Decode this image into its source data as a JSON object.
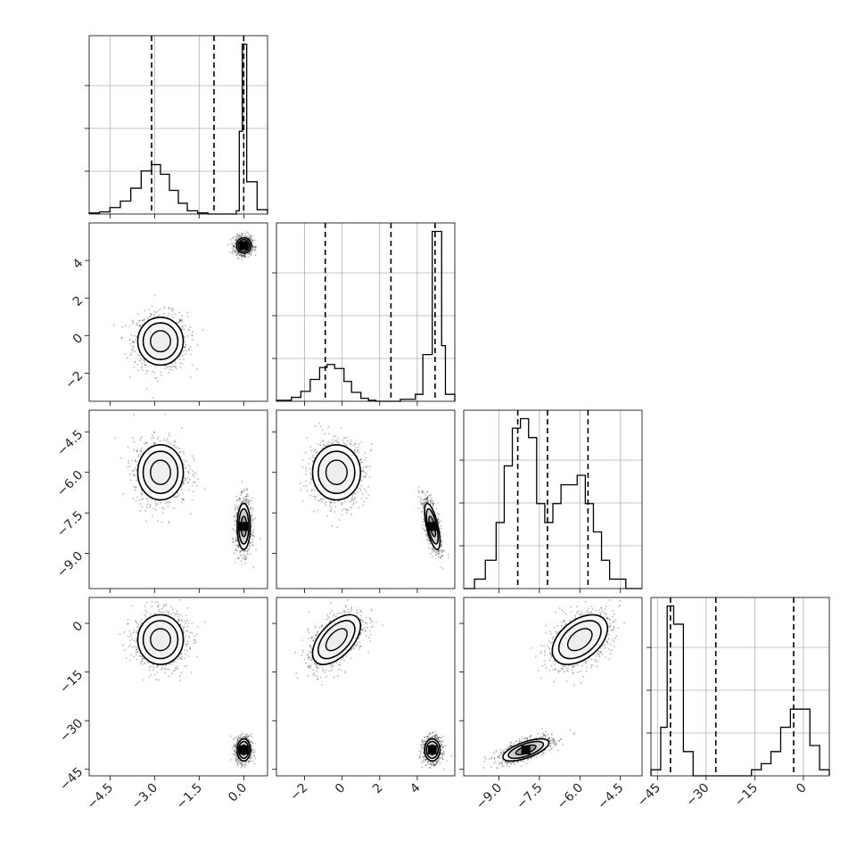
{
  "chart_data": {
    "type": "corner",
    "n_params": 4,
    "grid": true,
    "params": [
      {
        "range": [
          -5.2,
          0.8
        ],
        "ticks": [
          -4.5,
          -3.0,
          -1.5,
          0.0
        ],
        "tick_labels": [
          "−4.5",
          "−3.0",
          "−1.5",
          "0.0"
        ],
        "modes": [
          {
            "mean": -2.8,
            "sd": 0.5,
            "w": 0.5
          },
          {
            "mean": 0.0,
            "sd": 0.15,
            "w": 0.5
          }
        ],
        "quantiles": [
          -3.1,
          -1.0,
          0.0
        ],
        "hist": {
          "bins": [
            -5.2,
            -4.85,
            -4.5,
            -4.15,
            -3.8,
            -3.45,
            -3.1,
            -2.8,
            -2.5,
            -2.2,
            -1.9,
            -1.55,
            -1.2,
            -0.9,
            -0.45,
            -0.25,
            -0.15,
            -0.05,
            0.1,
            0.45,
            0.8
          ],
          "counts": [
            1,
            2,
            6,
            12,
            24,
            40,
            46,
            37,
            22,
            10,
            3,
            1,
            0,
            0,
            0,
            3,
            77,
            158,
            30,
            4
          ]
        }
      },
      {
        "range": [
          -3.5,
          6.0
        ],
        "ticks": [
          -2,
          0,
          2,
          4
        ],
        "tick_labels": [
          "−2",
          "0",
          "2",
          "4"
        ],
        "modes": [
          {
            "mean": -0.3,
            "sd": 0.8,
            "w": 0.5
          },
          {
            "mean": 4.8,
            "sd": 0.25,
            "w": 0.5
          }
        ],
        "quantiles": [
          -0.9,
          2.6,
          4.95
        ],
        "hist": {
          "bins": [
            -3.5,
            -2.7,
            -2.2,
            -1.7,
            -1.2,
            -0.8,
            -0.4,
            0.1,
            0.5,
            1.0,
            1.4,
            1.8,
            2.3,
            3.1,
            3.9,
            4.3,
            4.8,
            5.3,
            5.5,
            6.0
          ],
          "counts": [
            1,
            4,
            10,
            22,
            34,
            37,
            33,
            20,
            9,
            3,
            1,
            0,
            0,
            2,
            7,
            47,
            171,
            56,
            7
          ]
        }
      },
      {
        "range": [
          -10.3,
          -3.7
        ],
        "ticks": [
          -9.0,
          -7.5,
          -6.0,
          -4.5
        ],
        "tick_labels": [
          "−9.0",
          "−7.5",
          "−6.0",
          "−4.5"
        ],
        "modes": [
          {
            "mean": -6.0,
            "sd": 0.6,
            "w": 0.5
          },
          {
            "mean": -8.0,
            "sd": 0.5,
            "w": 0.5
          }
        ],
        "quantiles": [
          -8.3,
          -7.2,
          -5.7
        ],
        "hist": {
          "bins": [
            -10.3,
            -9.9,
            -9.5,
            -9.1,
            -8.8,
            -8.5,
            -8.2,
            -7.9,
            -7.6,
            -7.3,
            -7.0,
            -6.7,
            -6.4,
            -6.1,
            -5.8,
            -5.5,
            -5.2,
            -4.9,
            -4.6,
            -4.3,
            -3.7
          ],
          "counts": [
            0,
            1,
            3,
            7,
            13,
            17,
            18,
            16,
            9,
            7,
            9,
            11,
            11,
            12,
            9,
            6,
            3,
            1,
            1,
            0
          ]
        }
      },
      {
        "range": [
          -47,
          8
        ],
        "ticks": [
          -45,
          -30,
          -15,
          0
        ],
        "tick_labels": [
          "−45",
          "−30",
          "−15",
          "0"
        ],
        "modes": [
          {
            "mean": -5,
            "sd": 4.5,
            "w": 0.5
          },
          {
            "mean": -39,
            "sd": 2.0,
            "w": 0.5
          }
        ],
        "quantiles": [
          -41,
          -27,
          -3
        ],
        "hist": {
          "bins": [
            -47,
            -44,
            -42,
            -40,
            -37,
            -34,
            -31,
            -28,
            -25,
            -22,
            -19,
            -16,
            -13,
            -10,
            -7,
            -4,
            -1,
            2,
            5,
            8
          ],
          "counts": [
            1,
            8,
            28,
            25,
            4,
            0,
            0,
            0,
            0,
            0,
            0,
            1,
            2,
            4,
            8,
            11,
            11,
            5,
            1
          ]
        }
      }
    ],
    "pairs": [
      {
        "row": 1,
        "col": 0,
        "clusters": [
          {
            "mx": -2.8,
            "my": -0.3,
            "sx": 0.45,
            "sy": 0.75,
            "rho": 0.0
          },
          {
            "mx": 0.0,
            "my": 4.8,
            "sx": 0.14,
            "sy": 0.24,
            "rho": 0.0
          }
        ]
      },
      {
        "row": 2,
        "col": 0,
        "clusters": [
          {
            "mx": -2.8,
            "my": -6.0,
            "sx": 0.45,
            "sy": 0.6,
            "rho": 0.0
          },
          {
            "mx": 0.0,
            "my": -8.0,
            "sx": 0.13,
            "sy": 0.5,
            "rho": 0.0
          }
        ]
      },
      {
        "row": 2,
        "col": 1,
        "clusters": [
          {
            "mx": -0.3,
            "my": -6.0,
            "sx": 0.75,
            "sy": 0.6,
            "rho": 0.0
          },
          {
            "mx": 4.8,
            "my": -8.0,
            "sx": 0.24,
            "sy": 0.5,
            "rho": -0.65
          }
        ]
      },
      {
        "row": 3,
        "col": 0,
        "clusters": [
          {
            "mx": -2.8,
            "my": -5.0,
            "sx": 0.45,
            "sy": 4.5,
            "rho": 0.0
          },
          {
            "mx": 0.0,
            "my": -39.0,
            "sx": 0.13,
            "sy": 2.0,
            "rho": 0.0
          }
        ]
      },
      {
        "row": 3,
        "col": 1,
        "clusters": [
          {
            "mx": -0.3,
            "my": -5.0,
            "sx": 0.75,
            "sy": 4.5,
            "rho": 0.55
          },
          {
            "mx": 4.8,
            "my": -39.0,
            "sx": 0.24,
            "sy": 2.0,
            "rho": 0.0
          }
        ]
      },
      {
        "row": 3,
        "col": 2,
        "clusters": [
          {
            "mx": -6.0,
            "my": -5.0,
            "sx": 0.6,
            "sy": 4.5,
            "rho": 0.45
          },
          {
            "mx": -8.0,
            "my": -39.0,
            "sx": 0.5,
            "sy": 2.0,
            "rho": 0.65
          }
        ]
      }
    ]
  }
}
